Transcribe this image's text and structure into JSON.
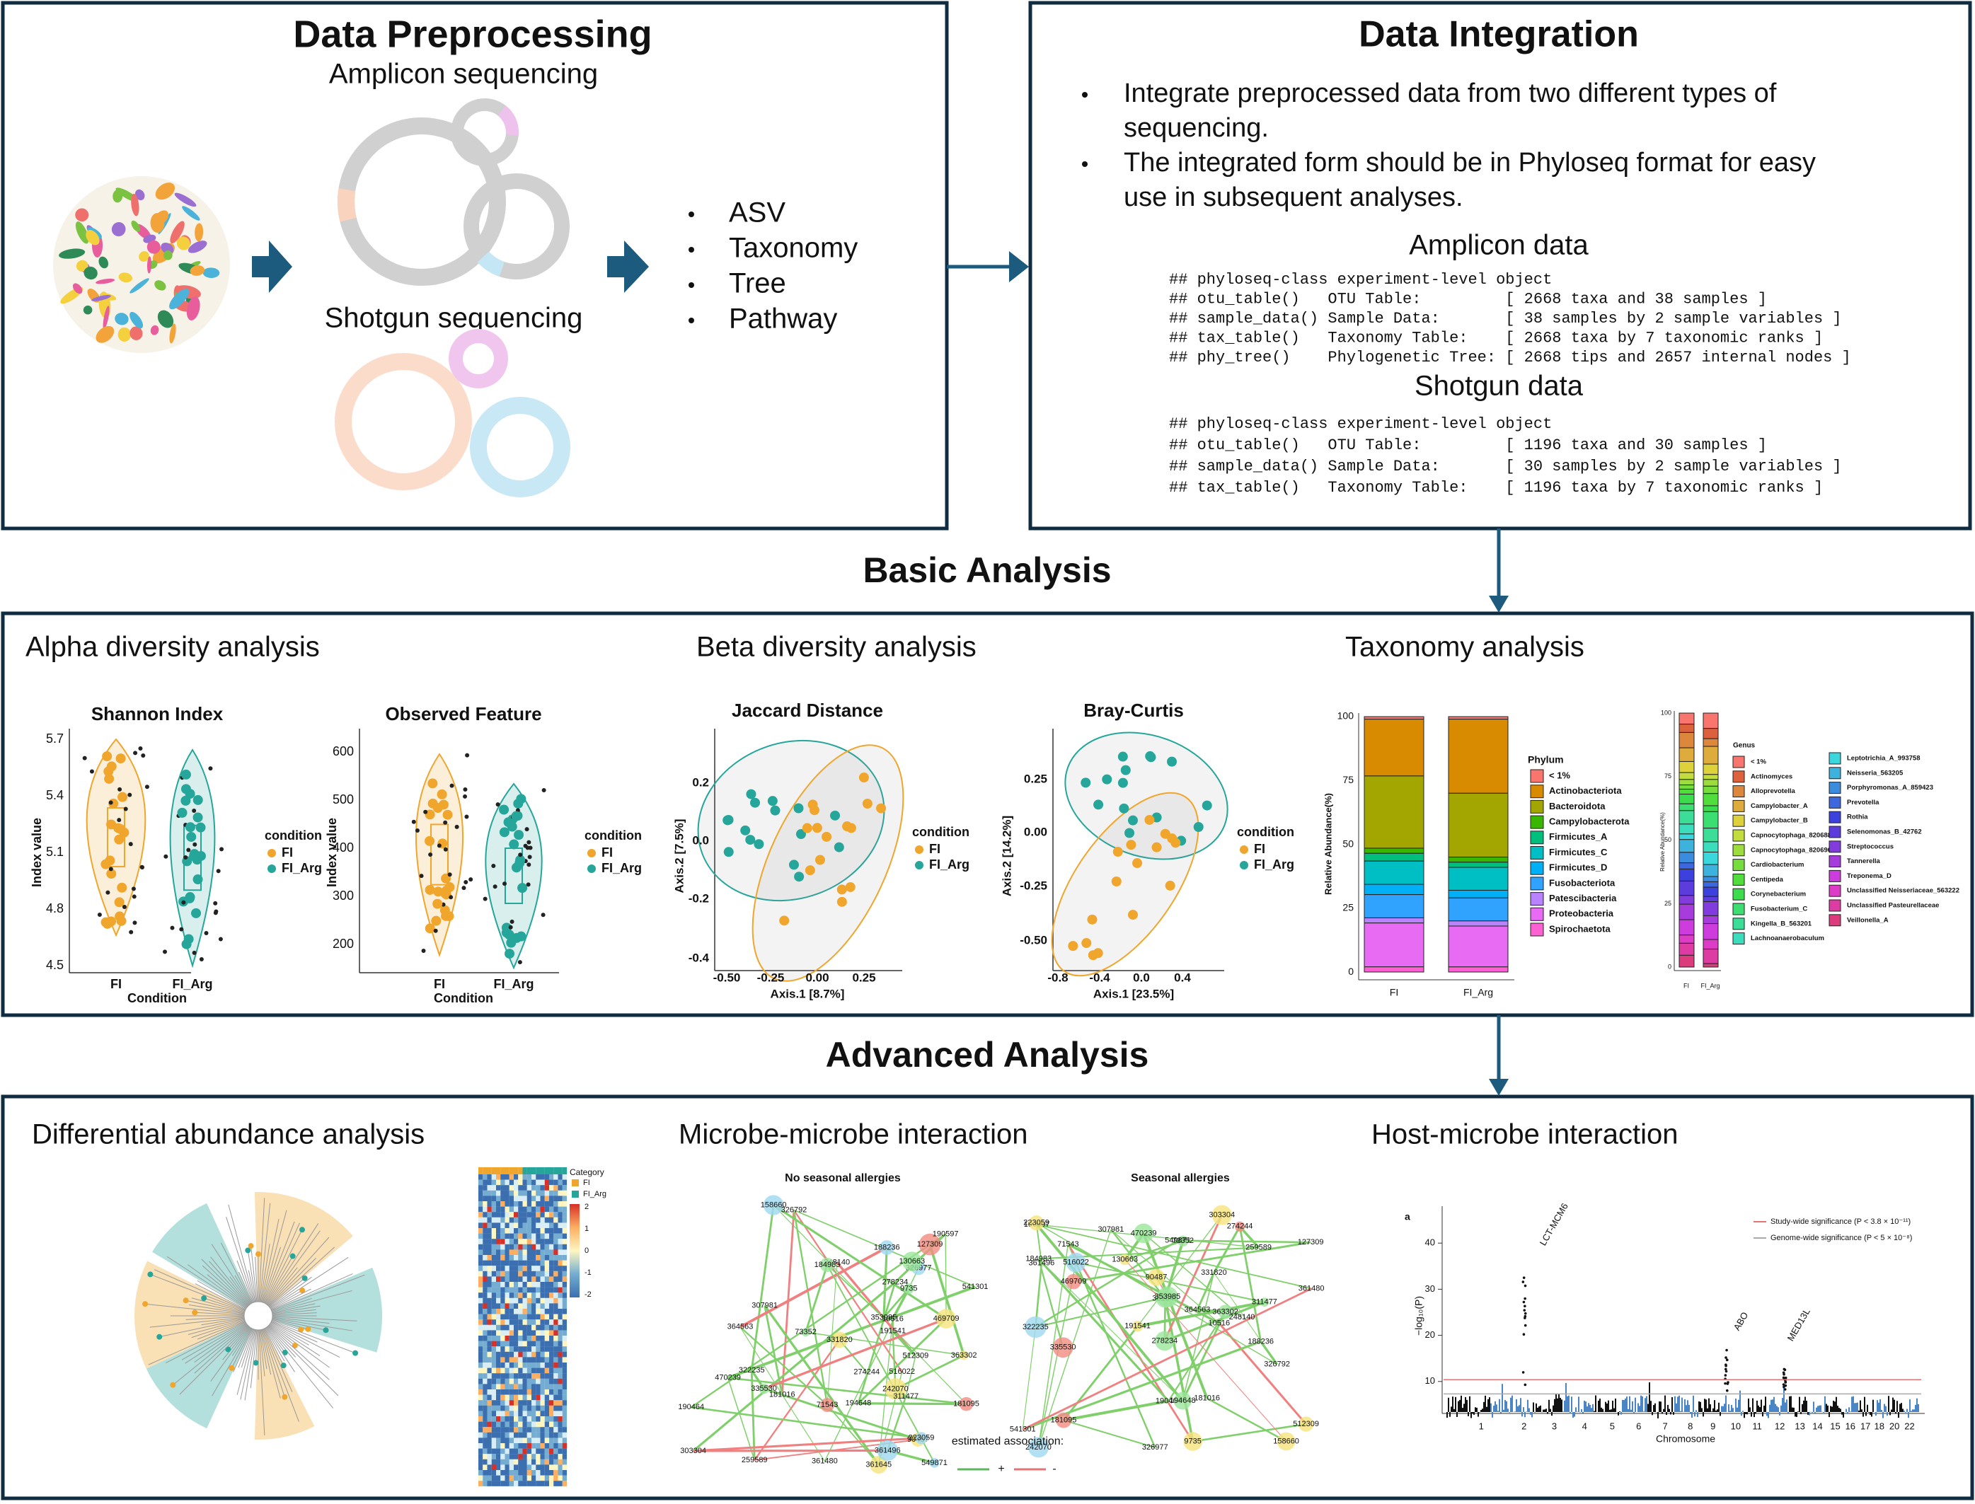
{
  "preprocessing": {
    "title": "Data Preprocessing",
    "amplicon": "Amplicon sequencing",
    "shotgun": "Shotgun sequencing",
    "outputs": [
      "ASV",
      "Taxonomy",
      "Tree",
      "Pathway"
    ]
  },
  "integration": {
    "title": "Data Integration",
    "bullets": [
      [
        "Integrate preprocessed data from two different types of",
        "sequencing."
      ],
      [
        "The integrated form should be in Phyloseq format for easy",
        "use in subsequent analyses."
      ]
    ],
    "amplicon_title": "Amplicon data",
    "amplicon_code": [
      "## phyloseq-class experiment-level object",
      "## otu_table()   OTU Table:         [ 2668 taxa and 38 samples ]",
      "## sample_data() Sample Data:       [ 38 samples by 2 sample variables ]",
      "## tax_table()   Taxonomy Table:    [ 2668 taxa by 7 taxonomic ranks ]",
      "## phy_tree()    Phylogenetic Tree: [ 2668 tips and 2657 internal nodes ]"
    ],
    "shotgun_title": "Shotgun data",
    "shotgun_code": [
      "## phyloseq-class experiment-level object",
      "## otu_table()   OTU Table:         [ 1196 taxa and 30 samples ]",
      "## sample_data() Sample Data:       [ 30 samples by 2 sample variables ]",
      "## tax_table()   Taxonomy Table:    [ 1196 taxa by 7 taxonomic ranks ]"
    ]
  },
  "basic": {
    "title": "Basic Analysis",
    "alpha": {
      "title": "Alpha diversity analysis",
      "plots": [
        {
          "title": "Shannon Index",
          "ylabel": "Index value",
          "xlabel": "Condition",
          "yticks": [
            "5.7",
            "5.4",
            "5.1",
            "4.8",
            "4.5"
          ],
          "categories": [
            "FI",
            "FI_Arg"
          ],
          "legend_title": "condition",
          "legend": [
            "FI",
            "FI_Arg"
          ]
        },
        {
          "title": "Observed Feature",
          "ylabel": "Index value",
          "xlabel": "Condition",
          "yticks": [
            "600",
            "500",
            "400",
            "300",
            "200"
          ],
          "categories": [
            "FI",
            "FI_Arg"
          ],
          "legend_title": "condition",
          "legend": [
            "FI",
            "FI_Arg"
          ]
        }
      ]
    },
    "beta": {
      "title": "Beta diversity analysis",
      "plots": [
        {
          "title": "Jaccard Distance",
          "xlabel": "Axis.1   [8.7%]",
          "ylabel": "Axis.2   [7.5%]",
          "xticks": [
            "-0.50",
            "-0.25",
            "0.00",
            "0.25"
          ],
          "yticks": [
            "0.2",
            "0.0",
            "-0.2",
            "-0.4"
          ],
          "legend_title": "condition",
          "legend": [
            "FI",
            "FI_Arg"
          ]
        },
        {
          "title": "Bray-Curtis",
          "xlabel": "Axis.1   [23.5%]",
          "ylabel": "Axis.2   [14.2%]",
          "xticks": [
            "-0.8",
            "-0.4",
            "0.0",
            "0.4"
          ],
          "yticks": [
            "0.25",
            "0.00",
            "-0.25",
            "-0.50"
          ],
          "legend_title": "condition",
          "legend": [
            "FI",
            "FI_Arg"
          ]
        }
      ]
    },
    "taxonomy": {
      "title": "Taxonomy analysis",
      "phylum": {
        "ylabel": "Relative Abundance(%)",
        "yticks": [
          "100",
          "75",
          "50",
          "25",
          "0"
        ],
        "categories": [
          "FI",
          "FI_Arg"
        ],
        "legend_title": "Phylum",
        "legend": [
          "< 1%",
          "Actinobacteriota",
          "Bacteroidota",
          "Campylobacterota",
          "Firmicutes_A",
          "Firmicutes_C",
          "Firmicutes_D",
          "Fusobacteriota",
          "Patescibacteria",
          "Proteobacteria",
          "Spirochaetota"
        ]
      },
      "genus": {
        "ylabel": "Relative Abundance(%)",
        "yticks": [
          "100",
          "75",
          "50",
          "25",
          "0"
        ],
        "categories": [
          "FI",
          "FI_Arg"
        ],
        "legend_title": "Genus",
        "legend": [
          "< 1%",
          "Actinomyces",
          "Alloprevotella",
          "Campylobacter_A",
          "Campylobacter_B",
          "Capnocytophaga_820688",
          "Capnocytophaga_820690",
          "Cardiobacterium",
          "Centipeda",
          "Corynebacterium",
          "Fusobacterium_C",
          "Kingella_B_563201",
          "Lachnoanaerobaculum",
          "Leptotrichia_A_993758",
          "Neisseria_563205",
          "Porphyromonas_A_859423",
          "Prevotella",
          "Rothia",
          "Selenomonas_B_42762",
          "Streptococcus",
          "Tannerella",
          "Treponema_D",
          "Unclassified Neisseriaceae_563222",
          "Unclassified Pasteurellaceae",
          "Veillonella_A"
        ]
      }
    }
  },
  "advanced": {
    "title": "Advanced Analysis",
    "differential": {
      "title": "Differential abundance analysis",
      "legend_title": "Category",
      "legend": [
        "FI",
        "FI_Arg"
      ],
      "scale": [
        "2",
        "1",
        "0",
        "-1",
        "-2"
      ]
    },
    "microbe": {
      "title": "Microbe-microbe interaction",
      "legend_title": "estimated association:",
      "legend": [
        "+",
        "-"
      ],
      "networks": [
        {
          "title": "No seasonal allergies",
          "nodes": [
            "335530",
            "90487",
            "181095",
            "158660",
            "322235",
            "259589",
            "470239",
            "326977",
            "274244",
            "331820",
            "541301",
            "361480",
            "130663",
            "516022",
            "326792",
            "181016",
            "307981",
            "361645",
            "71543",
            "364563",
            "9735",
            "10516",
            "248140",
            "188236",
            "353985",
            "191541",
            "512309",
            "549871",
            "184983",
            "242070",
            "311477",
            "361496",
            "73352",
            "363302",
            "127309",
            "303304",
            "278234",
            "190597",
            "190464",
            "223059",
            "194648",
            "469709"
          ]
        },
        {
          "title": "Seasonal allergies",
          "nodes": [
            "73352",
            "512309",
            "10516",
            "307981",
            "361645",
            "9735",
            "71543",
            "242070",
            "278234",
            "303304",
            "326977",
            "516022",
            "311477",
            "191541",
            "181095",
            "190464",
            "363302",
            "364563",
            "335530",
            "184983",
            "194648",
            "331820",
            "274244",
            "259589",
            "190597",
            "326792",
            "188236",
            "541301",
            "361480",
            "223059",
            "361496",
            "322235",
            "353985",
            "90487",
            "127309",
            "549871",
            "181016",
            "158660",
            "469709",
            "248140",
            "470239",
            "130663"
          ]
        }
      ]
    },
    "host": {
      "title": "Host-microbe interaction",
      "panel_label": "a",
      "ylabel": "−log₁₀(P)",
      "xlabel": "Chromosome",
      "yticks": [
        "40",
        "30",
        "20",
        "10"
      ],
      "xticks": [
        "1",
        "2",
        "3",
        "4",
        "5",
        "6",
        "7",
        "8",
        "9",
        "10",
        "11",
        "12",
        "13",
        "14",
        "15",
        "16",
        "17",
        "18",
        "20",
        "22"
      ],
      "legend": [
        "Study-wide significance (P < 3.8 × 10⁻¹¹)",
        "Genome-wide significance (P < 5 × 10⁻⁸)"
      ],
      "annotations": [
        "LCT-MCM6",
        "ABO",
        "MED13L"
      ]
    }
  }
}
